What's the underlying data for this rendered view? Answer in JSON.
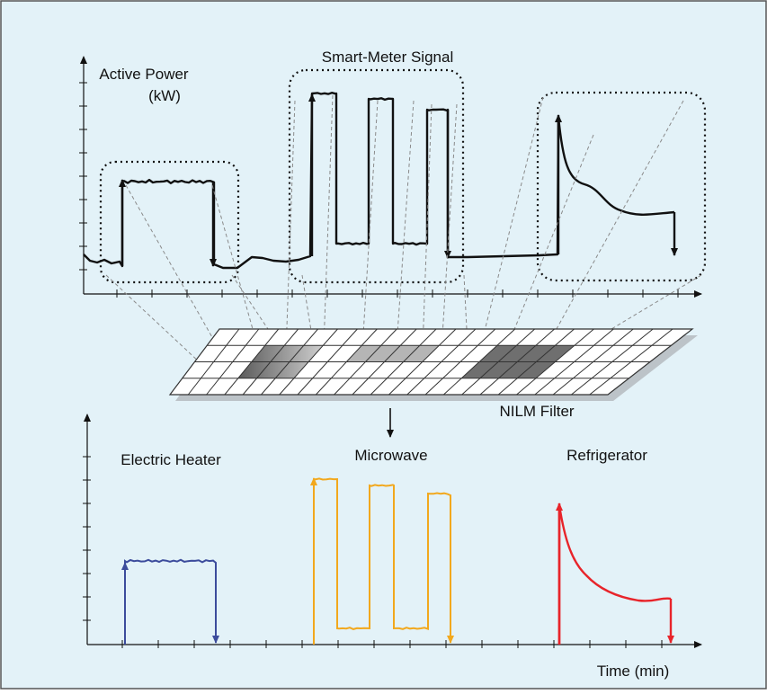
{
  "figure": {
    "background_color": "#e3f2f8",
    "border_color": "#555555",
    "aggregate_color": "#111111",
    "heater_color": "#3c4c9c",
    "microwave_color": "#f2a81d",
    "refrigerator_color": "#e8242a"
  },
  "labels": {
    "active_power": "Active Power",
    "active_power_unit": "(kW)",
    "smart_meter_signal": "Smart-Meter Signal",
    "nilm_filter": "NILM Filter",
    "electric_heater": "Electric Heater",
    "microwave": "Microwave",
    "refrigerator": "Refrigerator",
    "time_axis": "Time (min)"
  },
  "icons": {
    "down_arrow": "down-arrow-icon"
  }
}
